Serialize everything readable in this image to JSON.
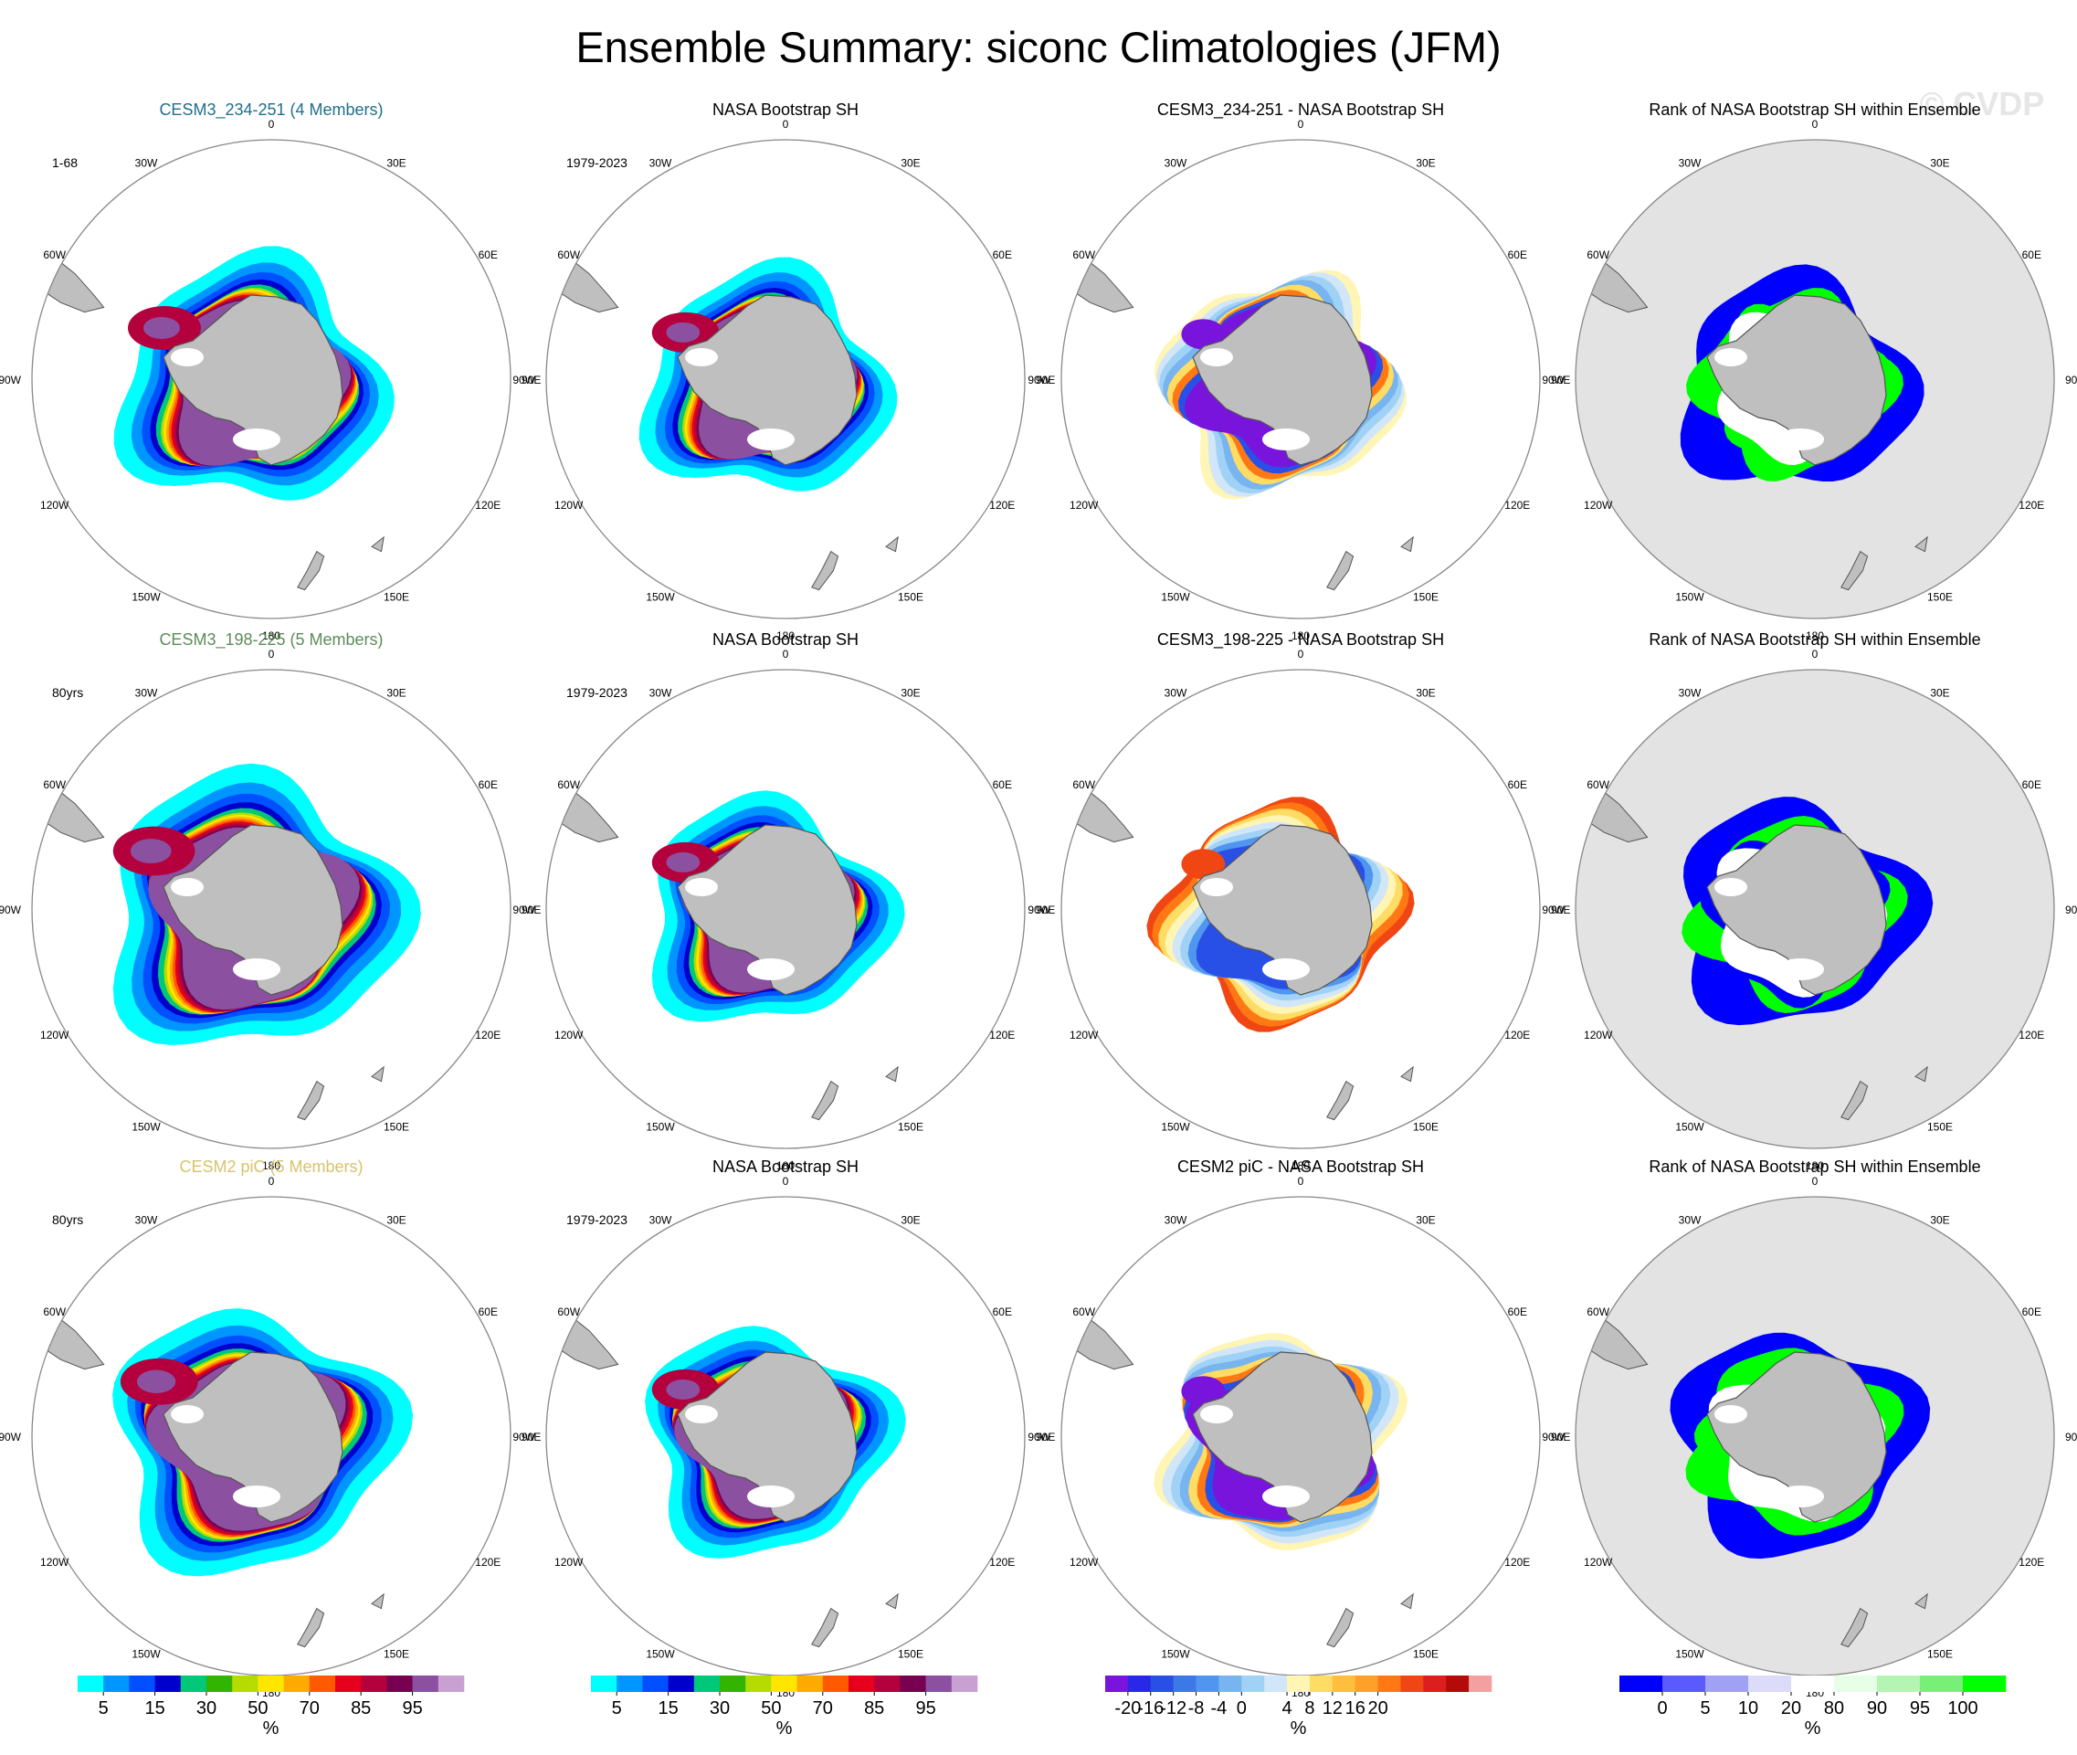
{
  "figure": {
    "title": "Ensemble Summary: siconc Climatologies (JFM)",
    "watermark": "© CVDP"
  },
  "colors": {
    "land": "#bfbfbf",
    "land_edge": "#555555",
    "rank_background": "#e3e3e3",
    "circle_edge": "#888888"
  },
  "map_labels": [
    "0",
    "30E",
    "60E",
    "90E",
    "120E",
    "150E",
    "180",
    "150W",
    "120W",
    "90W",
    "60W",
    "30W"
  ],
  "chart_data": [
    {
      "type": "heatmap",
      "projection": "south-polar-stereographic",
      "rows": [
        {
          "panels": [
            {
              "kind": "model",
              "title": "CESM3_234-251 (4 Members)",
              "title_color": "#1f6f8b",
              "subtitle": "1-68",
              "scale": 1.0
            },
            {
              "kind": "obs",
              "title": "NASA Bootstrap SH",
              "title_color": "#000000",
              "subtitle": "1979-2023",
              "scale": 0.92
            },
            {
              "kind": "diff",
              "title": "CESM3_234-251 - NASA Bootstrap SH",
              "title_color": "#000000",
              "subtitle": "",
              "scale": 0.92
            },
            {
              "kind": "rank",
              "title": "Rank of NASA Bootstrap SH within Ensemble",
              "title_color": "#000000",
              "subtitle": "",
              "scale": 0.92
            }
          ]
        },
        {
          "panels": [
            {
              "kind": "model",
              "title": "CESM3_198-225 (5 Members)",
              "title_color": "#5b8c5a",
              "subtitle": "80yrs",
              "scale": 1.12
            },
            {
              "kind": "obs",
              "title": "NASA Bootstrap SH",
              "title_color": "#000000",
              "subtitle": "1979-2023",
              "scale": 0.92
            },
            {
              "kind": "diff",
              "title": "CESM3_198-225 - NASA Bootstrap SH",
              "title_color": "#000000",
              "subtitle": "",
              "scale": 0.92
            },
            {
              "kind": "rank",
              "title": "Rank of NASA Bootstrap SH within Ensemble",
              "title_color": "#000000",
              "subtitle": "",
              "scale": 0.95
            }
          ]
        },
        {
          "panels": [
            {
              "kind": "model",
              "title": "CESM2 piC (5 Members)",
              "title_color": "#d6c46a",
              "subtitle": "80yrs",
              "scale": 1.06
            },
            {
              "kind": "obs",
              "title": "NASA Bootstrap SH",
              "title_color": "#000000",
              "subtitle": "1979-2023",
              "scale": 0.92
            },
            {
              "kind": "diff",
              "title": "CESM2 piC - NASA Bootstrap SH",
              "title_color": "#000000",
              "subtitle": "",
              "scale": 0.92
            },
            {
              "kind": "rank",
              "title": "Rank of NASA Bootstrap SH within Ensemble",
              "title_color": "#000000",
              "subtitle": "",
              "scale": 0.95
            }
          ]
        }
      ],
      "colorbars": [
        {
          "units": "%",
          "colors": [
            "#00ffff",
            "#0096ff",
            "#0050ff",
            "#0000cd",
            "#00c878",
            "#32b400",
            "#b4dc00",
            "#ffe600",
            "#ffaa00",
            "#ff5a00",
            "#e6001e",
            "#b4003c",
            "#780050",
            "#8c50a0",
            "#c8a0d2"
          ],
          "tick_labels": [
            "5",
            "15",
            "30",
            "50",
            "70",
            "85",
            "95"
          ],
          "tick_positions": [
            1,
            3,
            5,
            7,
            9,
            11,
            13
          ]
        },
        {
          "units": "%",
          "colors": [
            "#00ffff",
            "#0096ff",
            "#0050ff",
            "#0000cd",
            "#00c878",
            "#32b400",
            "#b4dc00",
            "#ffe600",
            "#ffaa00",
            "#ff5a00",
            "#e6001e",
            "#b4003c",
            "#780050",
            "#8c50a0",
            "#c8a0d2"
          ],
          "tick_labels": [
            "5",
            "15",
            "30",
            "50",
            "70",
            "85",
            "95"
          ],
          "tick_positions": [
            1,
            3,
            5,
            7,
            9,
            11,
            13
          ]
        },
        {
          "units": "%",
          "colors": [
            "#7814dc",
            "#2828e6",
            "#2850e6",
            "#3c78e6",
            "#5096f0",
            "#78b4f0",
            "#a0d2f5",
            "#d2e6fa",
            "#fff5b4",
            "#ffdc64",
            "#ffbe3c",
            "#ffa028",
            "#ff7814",
            "#f04614",
            "#dc1e1e",
            "#b40a0a",
            "#f5a0a0"
          ],
          "tick_labels": [
            "-20",
            "-16",
            "-12",
            "-8",
            "-4",
            "0",
            "4",
            "8",
            "12",
            "16",
            "20"
          ],
          "tick_positions": [
            1,
            2,
            3,
            4,
            5,
            6,
            8,
            9,
            10,
            11,
            12
          ]
        },
        {
          "units": "%",
          "colors": [
            "#0000ff",
            "#5a5aff",
            "#a0a0f5",
            "#dcdcfa",
            "#ffffff",
            "#e6ffe6",
            "#b4f5b4",
            "#78f078",
            "#00ff00"
          ],
          "tick_labels": [
            "0",
            "5",
            "10",
            "20",
            "80",
            "90",
            "95",
            "100"
          ],
          "tick_positions": [
            1,
            2,
            3,
            4,
            5,
            6,
            7,
            8
          ]
        }
      ]
    }
  ]
}
